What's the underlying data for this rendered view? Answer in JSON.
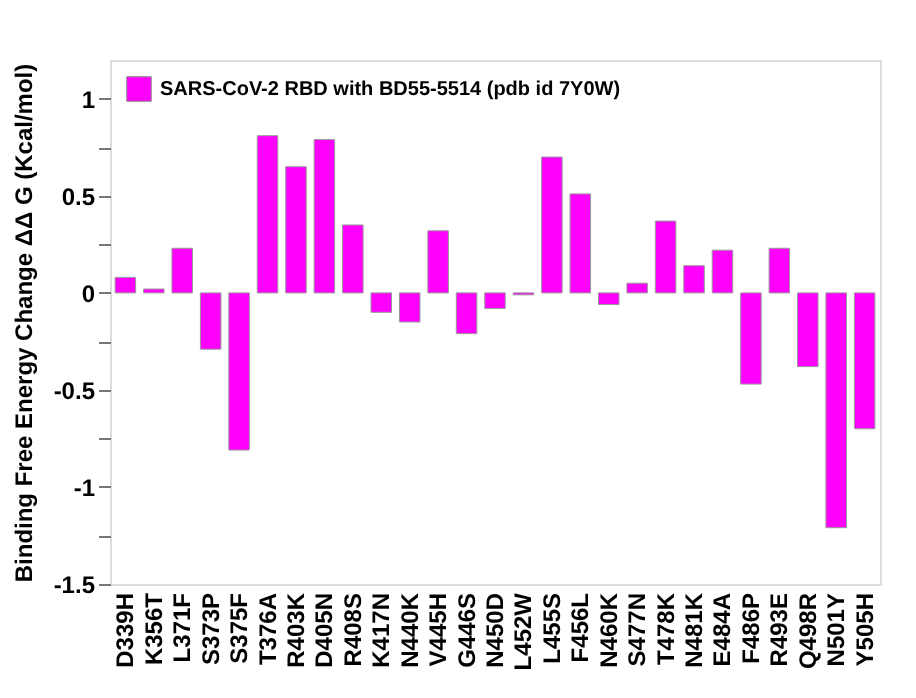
{
  "chart_data": {
    "type": "bar",
    "ylabel": "Binding Free Energy Change ΔΔ G (Kcal/mol)",
    "categories": [
      "D339H",
      "K356T",
      "L371F",
      "S373P",
      "S375F",
      "T376A",
      "R403K",
      "D405N",
      "R408S",
      "K417N",
      "N440K",
      "V445H",
      "G446S",
      "N450D",
      "L452W",
      "L455S",
      "F456L",
      "N460K",
      "S477N",
      "T478K",
      "N481K",
      "E484A",
      "F486P",
      "R493E",
      "Q498R",
      "N501Y",
      "Y505H"
    ],
    "series": [
      {
        "name": "SARS-CoV-2 RBD  with BD55-5514 (pdb id 7Y0W)",
        "color": "#ff00ff",
        "values": [
          0.08,
          0.02,
          0.23,
          -0.29,
          -0.81,
          0.81,
          0.65,
          0.79,
          0.35,
          -0.1,
          -0.15,
          0.32,
          -0.21,
          -0.08,
          -0.01,
          0.7,
          0.51,
          -0.06,
          0.05,
          0.37,
          0.14,
          0.22,
          -0.47,
          0.23,
          -0.38,
          -1.21,
          -0.7
        ]
      }
    ],
    "ylim": [
      -1.5,
      1.2
    ],
    "yticks": [
      -1.5,
      {
        "value": -1.25,
        "label": null
      },
      -1,
      {
        "value": -0.75,
        "label": null
      },
      -0.5,
      {
        "value": -0.25,
        "label": null
      },
      0,
      {
        "value": 0.25,
        "label": null
      },
      0.5,
      {
        "value": 0.75,
        "label": null
      },
      1
    ],
    "grid": false,
    "legend": "top left"
  }
}
